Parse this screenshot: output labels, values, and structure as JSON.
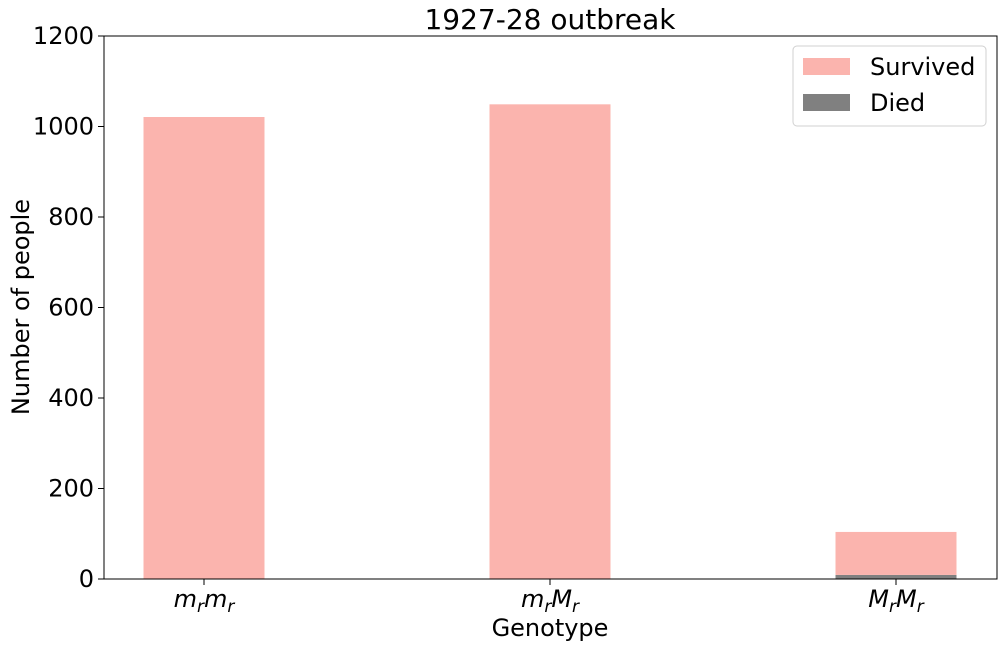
{
  "chart_data": {
    "type": "bar",
    "stacked": true,
    "title": "1927-28 outbreak",
    "xlabel": "Genotype",
    "ylabel": "Number of people",
    "ylim": [
      0,
      1200
    ],
    "yticks": [
      "0",
      "200",
      "400",
      "600",
      "800",
      "1000",
      "1200"
    ],
    "categories": [
      {
        "base": "m",
        "sub": "r",
        "base2": "m",
        "sub2": "r"
      },
      {
        "base": "m",
        "sub": "r",
        "base2": "M",
        "sub2": "r"
      },
      {
        "base": "M",
        "sub": "r",
        "base2": "M",
        "sub2": "r"
      }
    ],
    "series": [
      {
        "name": "Died",
        "color": "#808080",
        "values": [
          0,
          0,
          9
        ]
      },
      {
        "name": "Survived",
        "color": "#fbb4ae",
        "values": [
          1021,
          1049,
          95
        ]
      }
    ],
    "legend": {
      "position": "top-right",
      "entries": [
        {
          "label": "Survived",
          "color": "#fbb4ae"
        },
        {
          "label": "Died",
          "color": "#808080"
        }
      ]
    },
    "grid": false
  }
}
